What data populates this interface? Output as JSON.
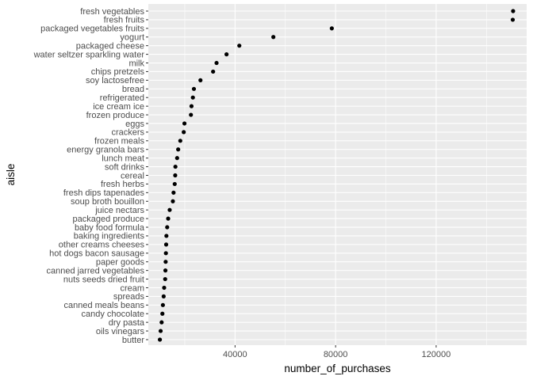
{
  "chart_data": {
    "type": "scatter",
    "xlabel": "number_of_purchases",
    "ylabel": "aisle",
    "xlim": [
      5500,
      156000
    ],
    "x_ticks": [
      40000,
      80000,
      120000
    ],
    "x_tick_labels": [
      "40000",
      "80000",
      "120000"
    ],
    "grid": true,
    "panel_background": "#ebebeb",
    "gridline_color": "#ffffff",
    "point_color": "#000000",
    "categories": [
      "fresh vegetables",
      "fresh fruits",
      "packaged vegetables fruits",
      "yogurt",
      "packaged cheese",
      "water seltzer sparkling water",
      "milk",
      "chips pretzels",
      "soy lactosefree",
      "bread",
      "refrigerated",
      "ice cream ice",
      "frozen produce",
      "eggs",
      "crackers",
      "frozen meals",
      "energy granola bars",
      "lunch meat",
      "soft drinks",
      "cereal",
      "fresh herbs",
      "fresh dips tapenades",
      "soup broth bouillon",
      "juice nectars",
      "packaged produce",
      "baby food formula",
      "baking ingredients",
      "other creams cheeses",
      "hot dogs bacon sausage",
      "paper goods",
      "canned jarred vegetables",
      "nuts seeds dried fruit",
      "cream",
      "spreads",
      "canned meals beans",
      "candy chocolate",
      "dry pasta",
      "oils vinegars",
      "butter"
    ],
    "values": [
      150609,
      150473,
      78493,
      55240,
      41699,
      36617,
      32644,
      31269,
      26240,
      23635,
      23228,
      22676,
      22453,
      19875,
      19592,
      18221,
      17383,
      16957,
      16279,
      16201,
      16000,
      15540,
      15268,
      14000,
      13400,
      13000,
      12700,
      12600,
      12500,
      12400,
      12300,
      12200,
      11800,
      11600,
      11300,
      11100,
      10800,
      10400,
      10100
    ]
  }
}
